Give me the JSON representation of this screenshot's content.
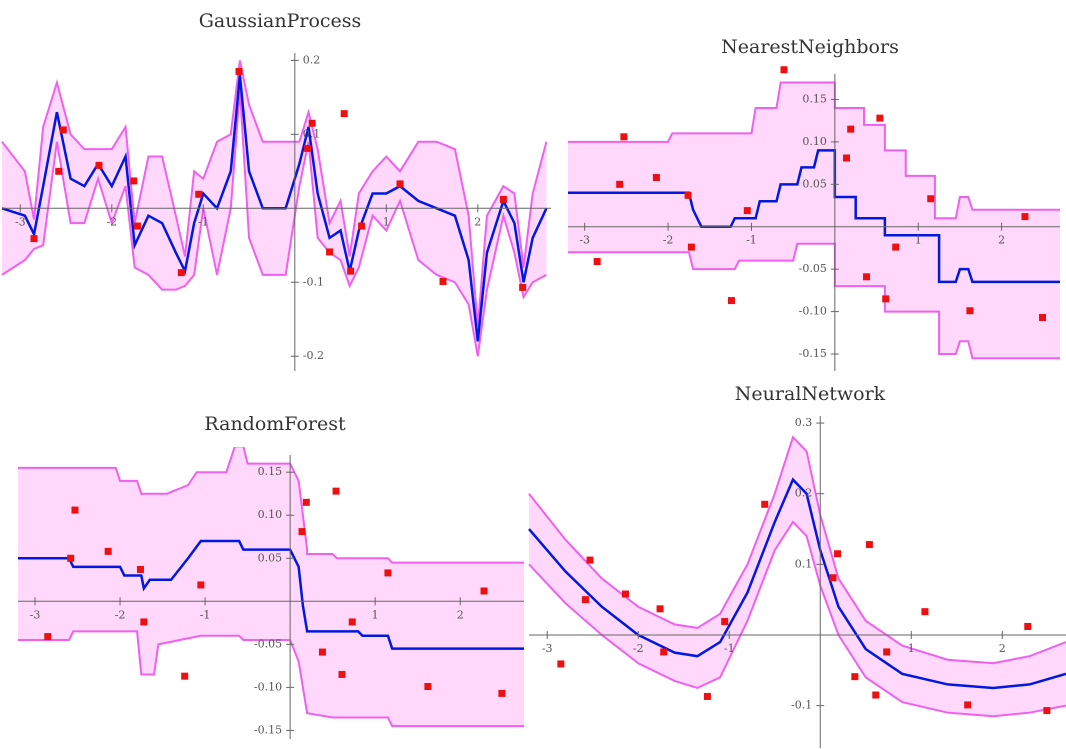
{
  "chart_data": [
    {
      "type": "line",
      "title": "GaussianProcess",
      "xlim": [
        -3.2,
        2.8
      ],
      "ylim": [
        -0.22,
        0.21
      ],
      "xticks": [
        -3,
        -2,
        -1,
        1,
        2
      ],
      "yticks": [
        -0.2,
        -0.1,
        0.1,
        0.2
      ],
      "band_fill": "#ffd8fb",
      "x": [
        -3.2,
        -2.95,
        -2.85,
        -2.75,
        -2.6,
        -2.45,
        -2.3,
        -2.15,
        -2.0,
        -1.85,
        -1.75,
        -1.6,
        -1.45,
        -1.3,
        -1.2,
        -1.1,
        -1.0,
        -0.85,
        -0.7,
        -0.6,
        -0.5,
        -0.35,
        -0.1,
        0.05,
        0.15,
        0.25,
        0.38,
        0.5,
        0.6,
        0.7,
        0.85,
        1.0,
        1.15,
        1.35,
        1.55,
        1.75,
        1.9,
        2.0,
        2.1,
        2.28,
        2.4,
        2.5,
        2.6,
        2.75
      ],
      "series": [
        {
          "color": "#f060f0",
          "values": [
            0.09,
            0.05,
            -0.015,
            0.11,
            0.17,
            0.1,
            0.08,
            0.08,
            0.08,
            0.11,
            -0.02,
            0.07,
            0.07,
            -0.01,
            -0.065,
            0.05,
            0.04,
            0.09,
            0.1,
            0.2,
            0.14,
            0.09,
            0.09,
            0.09,
            0.13,
            0.08,
            -0.02,
            0.01,
            -0.065,
            0.02,
            0.05,
            0.07,
            0.05,
            0.09,
            0.09,
            0.08,
            -0.01,
            -0.16,
            -0.01,
            0.03,
            0.02,
            -0.08,
            0.02,
            0.09
          ]
        },
        {
          "color": "#f060f0",
          "values": [
            -0.09,
            -0.07,
            -0.055,
            -0.05,
            0.09,
            -0.02,
            -0.02,
            0.04,
            -0.02,
            0.03,
            -0.08,
            -0.09,
            -0.11,
            -0.11,
            -0.105,
            -0.09,
            0,
            -0.09,
            0,
            0.16,
            -0.04,
            -0.09,
            -0.09,
            0.03,
            0.09,
            -0.04,
            -0.06,
            -0.07,
            -0.105,
            -0.08,
            -0.01,
            -0.03,
            0.01,
            -0.07,
            -0.09,
            -0.1,
            -0.13,
            -0.2,
            -0.11,
            -0.01,
            -0.06,
            -0.12,
            -0.1,
            -0.09
          ]
        },
        {
          "color": "#0018e0",
          "values": [
            0,
            -0.01,
            -0.035,
            0.03,
            0.13,
            0.04,
            0.03,
            0.06,
            0.03,
            0.07,
            -0.05,
            -0.01,
            -0.02,
            -0.06,
            -0.085,
            -0.02,
            0.02,
            0,
            0.05,
            0.18,
            0.05,
            0,
            0,
            0.06,
            0.11,
            0.02,
            -0.04,
            -0.03,
            -0.085,
            -0.03,
            0.02,
            0.02,
            0.03,
            0.01,
            0,
            -0.01,
            -0.07,
            -0.18,
            -0.06,
            0.01,
            -0.02,
            -0.1,
            -0.04,
            0
          ]
        }
      ],
      "points": {
        "color": "#ee1010",
        "x": [
          -2.85,
          -2.53,
          -2.58,
          -2.14,
          -1.76,
          -1.72,
          -1.24,
          -1.05,
          -0.61,
          0.14,
          0.19,
          0.54,
          0.38,
          0.61,
          0.73,
          1.15,
          1.62,
          2.28,
          2.49
        ],
        "y": [
          -0.041,
          0.106,
          0.05,
          0.058,
          0.037,
          -0.024,
          -0.087,
          0.019,
          0.185,
          0.081,
          0.115,
          0.128,
          -0.059,
          -0.085,
          -0.024,
          0.033,
          -0.099,
          0.012,
          -0.107
        ]
      }
    },
    {
      "type": "line",
      "title": "NearestNeighbors",
      "xlim": [
        -3.2,
        2.7
      ],
      "ylim": [
        -0.17,
        0.18
      ],
      "xticks": [
        -3,
        -2,
        -1,
        1,
        2
      ],
      "yticks": [
        {
          "value": -0.15,
          "label": "-0.15"
        },
        {
          "value": -0.1,
          "label": "-0.10"
        },
        {
          "value": -0.05,
          "label": "-0.05"
        },
        {
          "value": 0.05,
          "label": "0.05"
        },
        {
          "value": 0.1,
          "label": "0.10"
        },
        {
          "value": 0.15,
          "label": "0.15"
        }
      ],
      "band_fill": "#ffd8fb",
      "series": [
        {
          "color": "#f060f0",
          "x": [
            -3.2,
            -2.0,
            -1.95,
            -1.0,
            -0.95,
            -0.7,
            -0.65,
            0,
            0,
            0.35,
            0.35,
            0.6,
            0.6,
            0.85,
            0.85,
            1.2,
            1.2,
            1.45,
            1.5,
            1.6,
            1.65,
            2.7
          ],
          "values": [
            0.1,
            0.1,
            0.11,
            0.11,
            0.14,
            0.14,
            0.17,
            0.17,
            0.14,
            0.14,
            0.12,
            0.12,
            0.09,
            0.09,
            0.06,
            0.06,
            0.01,
            0.01,
            0.035,
            0.035,
            0.02,
            0.02
          ]
        },
        {
          "color": "#f060f0",
          "x": [
            -3.2,
            -1.75,
            -1.7,
            -1.2,
            -1.15,
            -0.5,
            -0.45,
            0,
            0,
            0.6,
            0.6,
            1.25,
            1.25,
            1.45,
            1.5,
            1.6,
            1.65,
            2.7
          ],
          "values": [
            -0.03,
            -0.03,
            -0.05,
            -0.05,
            -0.04,
            -0.04,
            -0.02,
            -0.02,
            -0.07,
            -0.07,
            -0.1,
            -0.1,
            -0.15,
            -0.15,
            -0.135,
            -0.135,
            -0.155,
            -0.155
          ]
        },
        {
          "color": "#0018e0",
          "x": [
            -3.2,
            -1.75,
            -1.7,
            -1.6,
            -1.25,
            -1.2,
            -0.95,
            -0.9,
            -0.7,
            -0.65,
            -0.45,
            -0.4,
            -0.25,
            -0.2,
            0,
            0,
            0.25,
            0.25,
            0.6,
            0.6,
            1.25,
            1.25,
            1.45,
            1.5,
            1.6,
            1.65,
            2.7
          ],
          "values": [
            0.04,
            0.04,
            0.02,
            0,
            0,
            0.01,
            0.01,
            0.03,
            0.03,
            0.05,
            0.05,
            0.07,
            0.07,
            0.09,
            0.09,
            0.035,
            0.035,
            0.01,
            0.01,
            -0.01,
            -0.01,
            -0.065,
            -0.065,
            -0.05,
            -0.05,
            -0.065,
            -0.065
          ]
        }
      ],
      "points": {
        "color": "#ee1010",
        "x": [
          -2.85,
          -2.53,
          -2.58,
          -2.14,
          -1.76,
          -1.72,
          -1.24,
          -1.05,
          -0.61,
          0.14,
          0.19,
          0.54,
          0.38,
          0.61,
          0.73,
          1.15,
          1.62,
          2.28,
          2.49
        ],
        "y": [
          -0.041,
          0.106,
          0.05,
          0.058,
          0.037,
          -0.024,
          -0.087,
          0.019,
          0.185,
          0.081,
          0.115,
          0.128,
          -0.059,
          -0.085,
          -0.024,
          0.033,
          -0.099,
          0.012,
          -0.107
        ]
      }
    },
    {
      "type": "line",
      "title": "RandomForest",
      "xlim": [
        -3.2,
        2.75
      ],
      "ylim": [
        -0.16,
        0.17
      ],
      "xticks": [
        -3,
        -2,
        -1,
        1,
        2
      ],
      "yticks": [
        {
          "value": -0.15,
          "label": "-0.15"
        },
        {
          "value": -0.1,
          "label": "-0.10"
        },
        {
          "value": -0.05,
          "label": "-0.05"
        },
        {
          "value": 0.05,
          "label": "0.05"
        },
        {
          "value": 0.1,
          "label": "0.10"
        },
        {
          "value": 0.15,
          "label": "0.15"
        }
      ],
      "band_fill": "#ffd8fb",
      "series": [
        {
          "color": "#f060f0",
          "x": [
            -3.2,
            -2.05,
            -2.0,
            -1.8,
            -1.75,
            -1.45,
            -1.2,
            -1.1,
            -0.75,
            -0.65,
            -0.55,
            -0.5,
            0,
            0.1,
            0.2,
            0.2,
            0.5,
            0.55,
            1.15,
            1.2,
            2.75
          ],
          "values": [
            0.155,
            0.155,
            0.14,
            0.14,
            0.125,
            0.125,
            0.135,
            0.15,
            0.15,
            0.18,
            0.18,
            0.16,
            0.16,
            0.14,
            0.06,
            0.055,
            0.055,
            0.05,
            0.05,
            0.045,
            0.045
          ]
        },
        {
          "color": "#f060f0",
          "x": [
            -3.2,
            -2.6,
            -2.55,
            -1.8,
            -1.75,
            -1.6,
            -1.55,
            -1.05,
            -0.6,
            -0.55,
            0,
            0.1,
            0.2,
            0.5,
            1.15,
            1.2,
            2.75
          ],
          "values": [
            -0.045,
            -0.045,
            -0.035,
            -0.035,
            -0.085,
            -0.085,
            -0.05,
            -0.04,
            -0.04,
            -0.045,
            -0.045,
            -0.07,
            -0.13,
            -0.135,
            -0.135,
            -0.145,
            -0.145
          ]
        },
        {
          "color": "#0018e0",
          "x": [
            -3.2,
            -2.6,
            -2.55,
            -2.0,
            -1.95,
            -1.75,
            -1.72,
            -1.65,
            -1.4,
            -1.2,
            -1.05,
            -0.6,
            -0.55,
            0,
            0.1,
            0.15,
            0.2,
            0.8,
            0.85,
            1.15,
            1.2,
            2.75
          ],
          "values": [
            0.05,
            0.05,
            0.04,
            0.04,
            0.03,
            0.03,
            0.015,
            0.025,
            0.025,
            0.05,
            0.07,
            0.07,
            0.06,
            0.06,
            0.04,
            -0.005,
            -0.035,
            -0.035,
            -0.04,
            -0.04,
            -0.055,
            -0.055
          ]
        }
      ],
      "points": {
        "color": "#ee1010",
        "x": [
          -2.85,
          -2.53,
          -2.58,
          -2.14,
          -1.76,
          -1.72,
          -1.24,
          -1.05,
          -0.61,
          0.14,
          0.19,
          0.54,
          0.38,
          0.61,
          0.73,
          1.15,
          1.62,
          2.28,
          2.49
        ],
        "y": [
          -0.041,
          0.106,
          0.05,
          0.058,
          0.037,
          -0.024,
          -0.087,
          0.019,
          0.185,
          0.081,
          0.115,
          0.128,
          -0.059,
          -0.085,
          -0.024,
          0.033,
          -0.099,
          0.012,
          -0.107
        ]
      }
    },
    {
      "type": "line",
      "title": "NeuralNetwork",
      "xlim": [
        -3.2,
        2.7
      ],
      "ylim": [
        -0.16,
        0.31
      ],
      "xticks": [
        -3,
        -2,
        -1,
        1,
        2
      ],
      "yticks": [
        -0.1,
        0.1,
        0.2,
        0.3
      ],
      "band_fill": "#ffd8fb",
      "x": [
        -3.2,
        -2.8,
        -2.4,
        -2.0,
        -1.6,
        -1.35,
        -1.1,
        -0.8,
        -0.5,
        -0.3,
        -0.15,
        0,
        0.2,
        0.5,
        0.9,
        1.4,
        1.9,
        2.3,
        2.7
      ],
      "series": [
        {
          "color": "#f060f0",
          "values": [
            0.2,
            0.135,
            0.08,
            0.04,
            0.015,
            0.01,
            0.03,
            0.1,
            0.2,
            0.28,
            0.26,
            0.17,
            0.08,
            0.02,
            -0.015,
            -0.035,
            -0.04,
            -0.03,
            -0.01
          ]
        },
        {
          "color": "#f060f0",
          "values": [
            0.1,
            0.045,
            0,
            -0.04,
            -0.065,
            -0.075,
            -0.06,
            0.02,
            0.12,
            0.16,
            0.14,
            0.07,
            0,
            -0.06,
            -0.095,
            -0.11,
            -0.115,
            -0.11,
            -0.1
          ]
        },
        {
          "color": "#0018e0",
          "values": [
            0.15,
            0.09,
            0.04,
            0,
            -0.025,
            -0.03,
            -0.01,
            0.06,
            0.16,
            0.22,
            0.2,
            0.12,
            0.04,
            -0.02,
            -0.055,
            -0.07,
            -0.075,
            -0.07,
            -0.055
          ]
        }
      ],
      "points": {
        "color": "#ee1010",
        "x": [
          -2.85,
          -2.53,
          -2.58,
          -2.14,
          -1.76,
          -1.72,
          -1.24,
          -1.05,
          -0.61,
          0.14,
          0.19,
          0.54,
          0.38,
          0.61,
          0.73,
          1.15,
          1.62,
          2.28,
          2.49
        ],
        "y": [
          -0.041,
          0.106,
          0.05,
          0.058,
          0.037,
          -0.024,
          -0.087,
          0.019,
          0.185,
          0.081,
          0.115,
          0.128,
          -0.059,
          -0.085,
          -0.024,
          0.033,
          -0.099,
          0.012,
          -0.107
        ]
      }
    }
  ]
}
